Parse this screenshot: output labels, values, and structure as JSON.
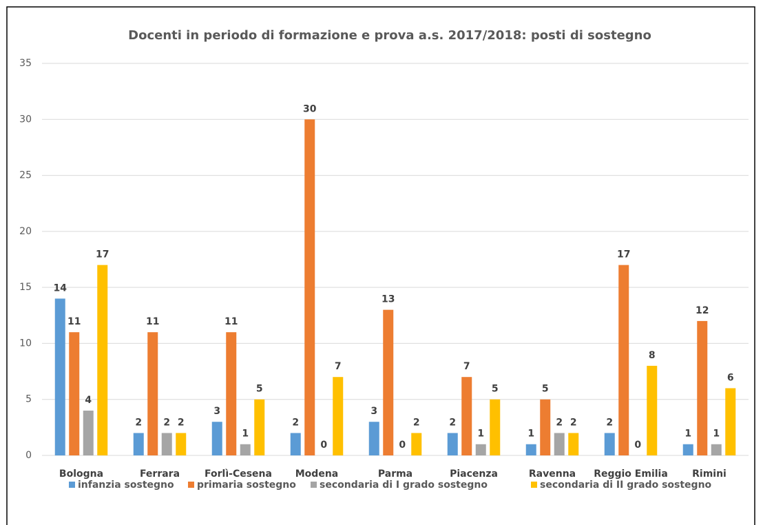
{
  "chart_data": {
    "type": "bar",
    "title": "Docenti in periodo di formazione e prova a.s. 2017/2018: posti di sostegno",
    "categories": [
      "Bologna",
      "Ferrara",
      "Forlì-Cesena",
      "Modena",
      "Parma",
      "Piacenza",
      "Ravenna",
      "Reggio Emilia",
      "Rimini"
    ],
    "series": [
      {
        "name": "infanzia sostegno",
        "color": "#5b9bd5",
        "values": [
          14,
          2,
          3,
          2,
          3,
          2,
          1,
          2,
          1
        ]
      },
      {
        "name": "primaria sostegno",
        "color": "#ed7d31",
        "values": [
          11,
          11,
          11,
          30,
          13,
          7,
          5,
          17,
          12
        ]
      },
      {
        "name": "secondaria di I grado sostegno",
        "color": "#a5a5a5",
        "values": [
          4,
          2,
          1,
          0,
          0,
          1,
          2,
          0,
          1
        ]
      },
      {
        "name": "secondaria di II grado sostegno",
        "color": "#ffc000",
        "values": [
          17,
          2,
          5,
          7,
          2,
          5,
          2,
          8,
          6
        ]
      }
    ],
    "ylim": [
      0,
      35
    ],
    "yticks": [
      0,
      5,
      10,
      15,
      20,
      25,
      30,
      35
    ],
    "grid": true,
    "legend": "bottom"
  }
}
